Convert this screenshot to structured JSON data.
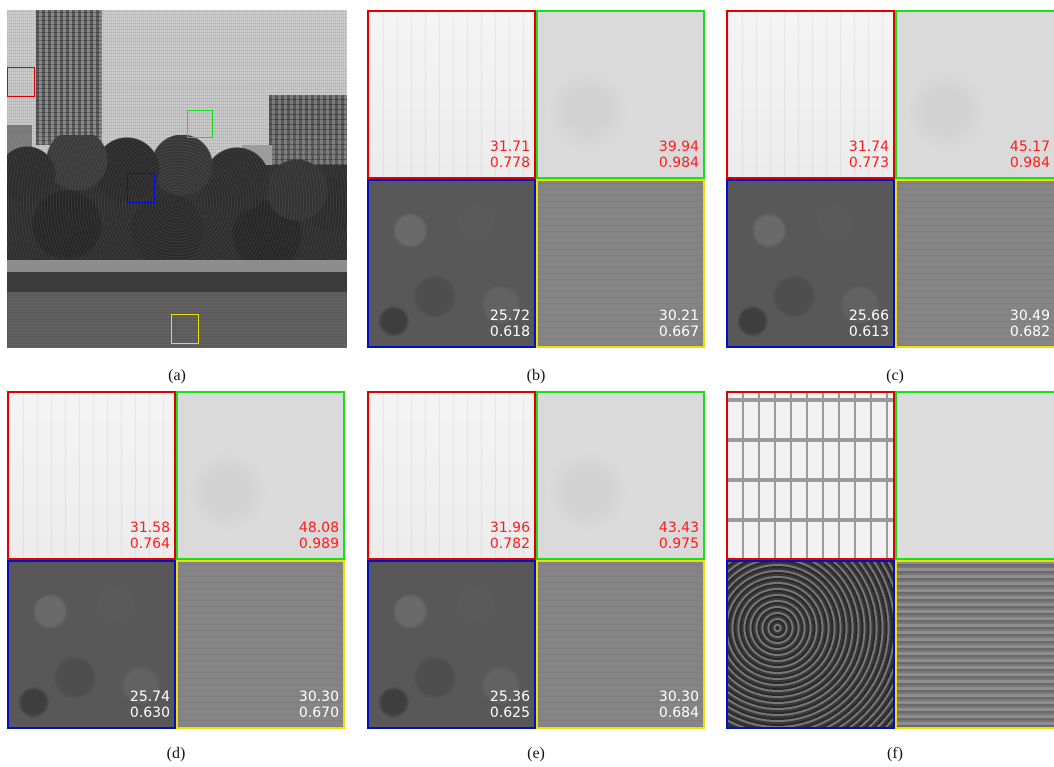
{
  "panels": {
    "a": {
      "caption": "(a)"
    },
    "b": {
      "caption": "(b)",
      "red": {
        "psnr": "31.71",
        "ssim": "0.778"
      },
      "green": {
        "psnr": "39.94",
        "ssim": "0.984"
      },
      "blue": {
        "psnr": "25.72",
        "ssim": "0.618"
      },
      "yellow": {
        "psnr": "30.21",
        "ssim": "0.667"
      }
    },
    "c": {
      "caption": "(c)",
      "red": {
        "psnr": "31.74",
        "ssim": "0.773"
      },
      "green": {
        "psnr": "45.17",
        "ssim": "0.984"
      },
      "blue": {
        "psnr": "25.66",
        "ssim": "0.613"
      },
      "yellow": {
        "psnr": "30.49",
        "ssim": "0.682"
      }
    },
    "d": {
      "caption": "(d)",
      "red": {
        "psnr": "31.58",
        "ssim": "0.764"
      },
      "green": {
        "psnr": "48.08",
        "ssim": "0.989"
      },
      "blue": {
        "psnr": "25.74",
        "ssim": "0.630"
      },
      "yellow": {
        "psnr": "30.30",
        "ssim": "0.670"
      }
    },
    "e": {
      "caption": "(e)",
      "red": {
        "psnr": "31.96",
        "ssim": "0.782"
      },
      "green": {
        "psnr": "43.43",
        "ssim": "0.975"
      },
      "blue": {
        "psnr": "25.36",
        "ssim": "0.625"
      },
      "yellow": {
        "psnr": "30.30",
        "ssim": "0.684"
      }
    },
    "f": {
      "caption": "(f)"
    }
  },
  "colors": {
    "red_box": "#e00000",
    "green_box": "#18e018",
    "blue_box": "#0010c8",
    "yellow_box": "#f0e000",
    "metric_top": "#ff1a1a",
    "metric_bottom": "#ffffff"
  }
}
